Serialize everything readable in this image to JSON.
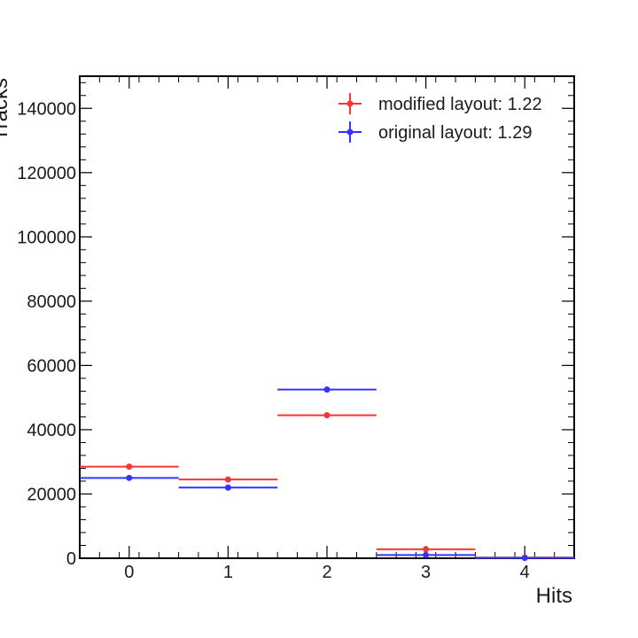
{
  "chart_data": {
    "type": "scatter",
    "title": "",
    "xlabel": "Hits",
    "ylabel": "Tracks",
    "xlim": [
      -0.5,
      4.5
    ],
    "ylim": [
      0,
      150000
    ],
    "xticks": [
      "0",
      "1",
      "2",
      "3",
      "4"
    ],
    "yticks": [
      "0",
      "20000",
      "40000",
      "60000",
      "80000",
      "100000",
      "120000",
      "140000"
    ],
    "grid": false,
    "legend_position": "top-right",
    "x": [
      0,
      1,
      2,
      3,
      4
    ],
    "series": [
      {
        "name": "modified layout: 1.22",
        "color": "#ff3333",
        "values": [
          28500,
          24500,
          44500,
          2800,
          200
        ]
      },
      {
        "name": "original layout: 1.29",
        "color": "#3333ff",
        "values": [
          25000,
          22000,
          52500,
          1000,
          100
        ]
      }
    ]
  }
}
